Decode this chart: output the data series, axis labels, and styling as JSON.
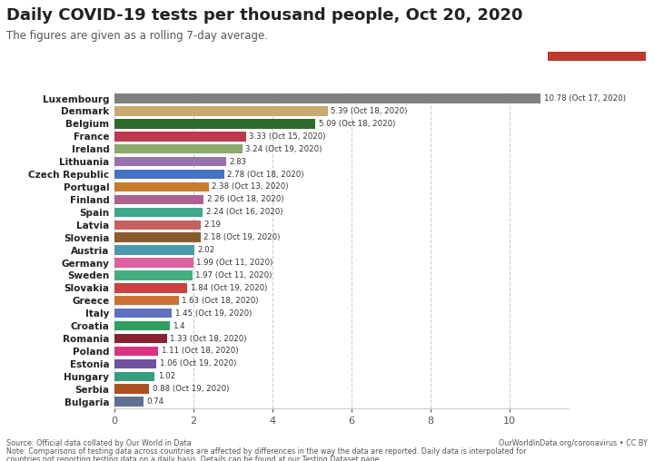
{
  "title": "Daily COVID-19 tests per thousand people, Oct 20, 2020",
  "subtitle": "The figures are given as a rolling 7-day average.",
  "countries": [
    "Luxembourg",
    "Denmark",
    "Belgium",
    "France",
    "Ireland",
    "Lithuania",
    "Czech Republic",
    "Portugal",
    "Finland",
    "Spain",
    "Latvia",
    "Slovenia",
    "Austria",
    "Germany",
    "Sweden",
    "Slovakia",
    "Greece",
    "Italy",
    "Croatia",
    "Romania",
    "Poland",
    "Estonia",
    "Hungary",
    "Serbia",
    "Bulgaria"
  ],
  "values": [
    10.78,
    5.39,
    5.09,
    3.33,
    3.24,
    2.83,
    2.78,
    2.38,
    2.26,
    2.24,
    2.19,
    2.18,
    2.02,
    1.99,
    1.97,
    1.84,
    1.63,
    1.45,
    1.4,
    1.33,
    1.11,
    1.06,
    1.02,
    0.88,
    0.74
  ],
  "labels": [
    "10.78 (Oct 17, 2020)",
    "5.39 (Oct 18, 2020)",
    "5.09 (Oct 18, 2020)",
    "3.33 (Oct 15, 2020)",
    "3.24 (Oct 19, 2020)",
    "2.83",
    "2.78 (Oct 18, 2020)",
    "2.38 (Oct 13, 2020)",
    "2.26 (Oct 18, 2020)",
    "2.24 (Oct 16, 2020)",
    "2.19",
    "2.18 (Oct 19, 2020)",
    "2.02",
    "1.99 (Oct 11, 2020)",
    "1.97 (Oct 11, 2020)",
    "1.84 (Oct 19, 2020)",
    "1.63 (Oct 18, 2020)",
    "1.45 (Oct 19, 2020)",
    "1.4",
    "1.33 (Oct 18, 2020)",
    "1.11 (Oct 18, 2020)",
    "1.06 (Oct 19, 2020)",
    "1.02",
    "0.88 (Oct 19, 2020)",
    "0.74"
  ],
  "colors": [
    "#7f7f7f",
    "#c8a96e",
    "#2d6b2a",
    "#c0384e",
    "#8aaa6a",
    "#9b72b0",
    "#4472c4",
    "#c87c2a",
    "#b06090",
    "#3aaa8a",
    "#c86060",
    "#8a5a2a",
    "#4a9ab0",
    "#e060a0",
    "#40b080",
    "#d04040",
    "#d07030",
    "#6070c0",
    "#30a060",
    "#8a2030",
    "#e03080",
    "#7050a0",
    "#30a080",
    "#b05020",
    "#607090"
  ],
  "xlim": [
    0,
    11.5
  ],
  "xticks": [
    0,
    2,
    4,
    6,
    8,
    10
  ],
  "footer_left_line1": "Source: Official data collated by Our World in Data",
  "footer_left_line2": "Note: Comparisons of testing data across countries are affected by differences in the way the data are reported. Daily data is interpolated for",
  "footer_left_line3": "countries not reporting testing data on a daily basis. Details can be found at our Testing Dataset page.",
  "footer_right": "OurWorldInData.org/coronavirus • CC BY",
  "logo_bg_color": "#1a3a5c",
  "logo_red_color": "#c0392b",
  "bg_color": "#ffffff"
}
